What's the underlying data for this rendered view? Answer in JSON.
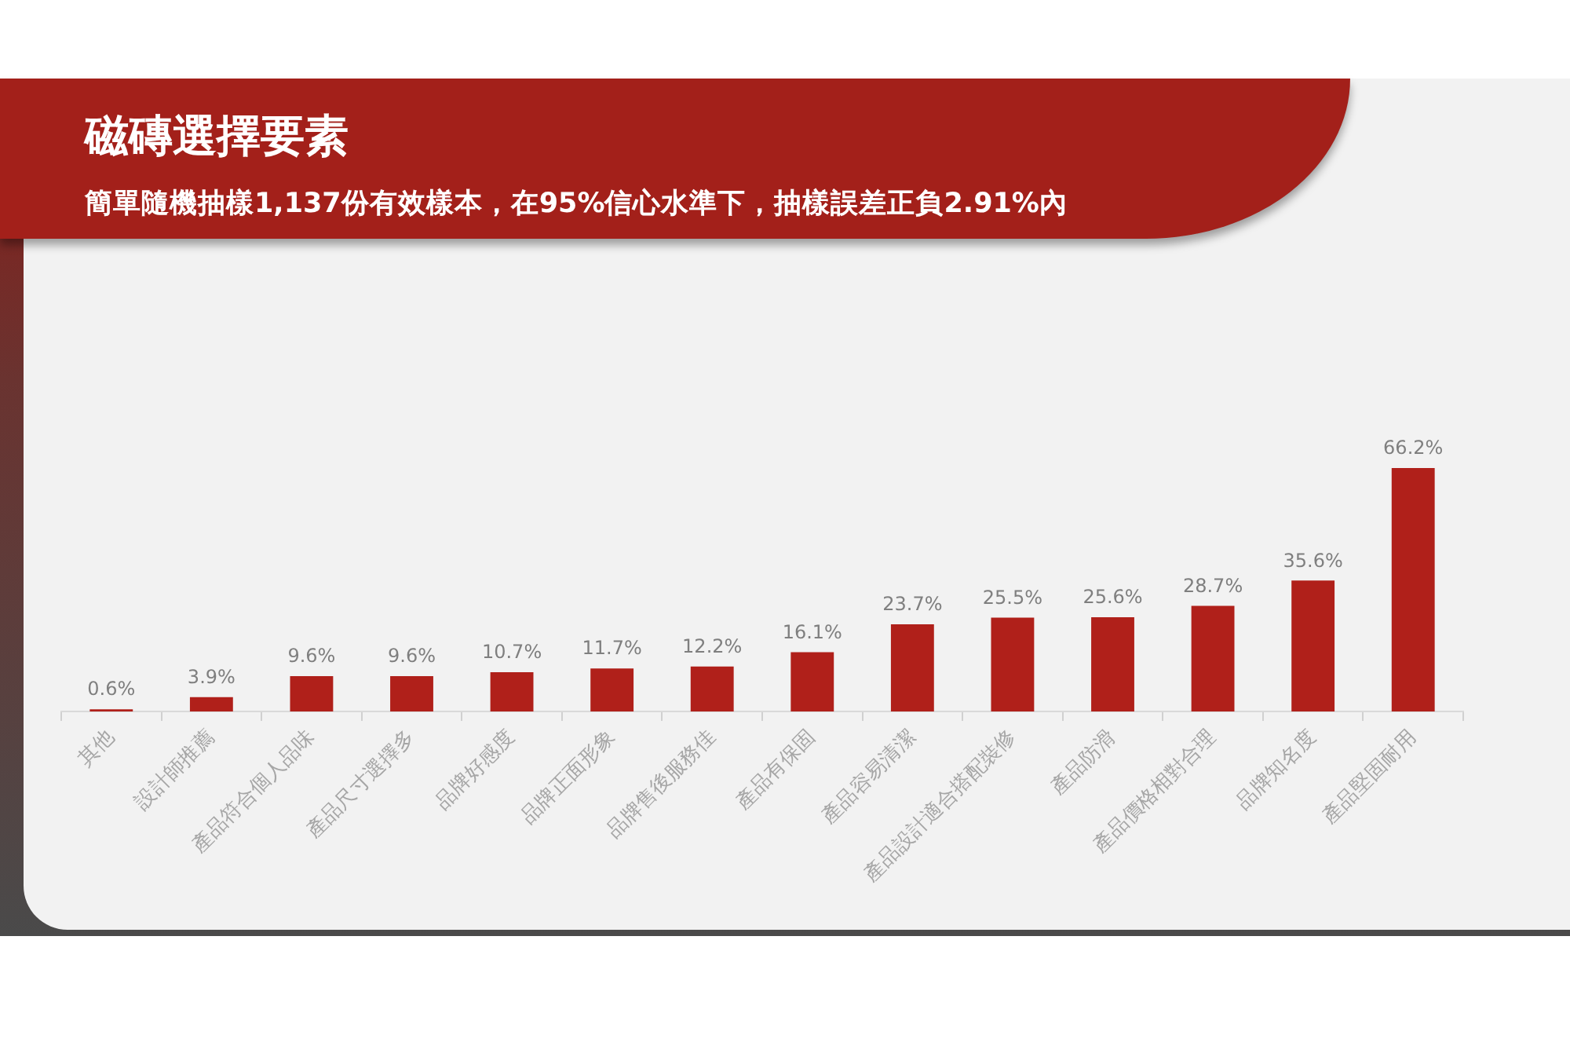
{
  "chart_data": {
    "type": "bar",
    "title": "磁磚選擇要素",
    "subtitle": "簡單隨機抽樣1,137份有效樣本，在95%信心水準下，抽樣誤差正負2.91%內",
    "categories": [
      "其他",
      "設計師推薦",
      "產品符合個人品味",
      "產品尺寸選擇多",
      "品牌好感度",
      "品牌正面形象",
      "品牌售後服務佳",
      "產品有保固",
      "產品容易清潔",
      "產品設計適合搭配裝修",
      "產品防滑",
      "產品價格相對合理",
      "品牌知名度",
      "產品堅固耐用"
    ],
    "values": [
      0.6,
      3.9,
      9.6,
      9.6,
      10.7,
      11.7,
      12.2,
      16.1,
      23.7,
      25.5,
      25.6,
      28.7,
      35.6,
      66.2
    ],
    "value_labels": [
      "0.6%",
      "3.9%",
      "9.6%",
      "9.6%",
      "10.7%",
      "11.7%",
      "12.2%",
      "16.1%",
      "23.7%",
      "25.5%",
      "25.6%",
      "28.7%",
      "35.6%",
      "66.2%"
    ],
    "color": "#b0201a",
    "tick_labels": "x"
  }
}
